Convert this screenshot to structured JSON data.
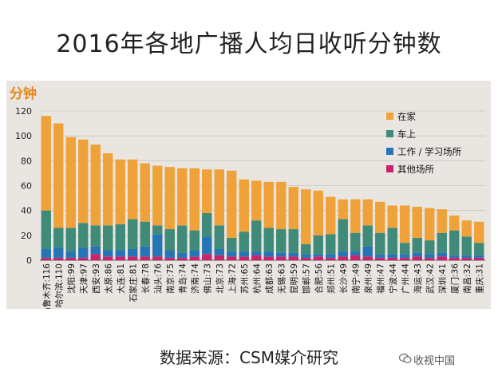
{
  "title": "2016年各地广播人均日收听分钟数",
  "source": "数据来源：CSM媒介研究",
  "watermark": "收视中国",
  "colors": {
    "at_home": "#f0a23a",
    "in_car": "#3f8a78",
    "work_study": "#2574b6",
    "other": "#c8236c",
    "unit": "#e8891f"
  },
  "chart_data": {
    "type": "bar",
    "stacked": true,
    "ylabel": "分钟",
    "ylim": [
      0,
      120
    ],
    "yticks": [
      0,
      20,
      40,
      60,
      80,
      100,
      120
    ],
    "categories": [
      "乌鲁木齐:116",
      "哈尔滨:110",
      "沈阳:99",
      "天津:97",
      "西安:93",
      "太原:86",
      "大连:81",
      "石家庄:81",
      "长春:78",
      "汕头:76",
      "南京:75",
      "青岛:74",
      "济南:74",
      "佛山:73",
      "北京:73",
      "上海:72",
      "苏州:65",
      "杭州:64",
      "成都:63",
      "无锡:63",
      "昆明:59",
      "邯郸:57",
      "合肥:56",
      "郑州:51",
      "长沙:49",
      "南宁:49",
      "泉州:49",
      "福州:47",
      "宁波:44",
      "广州:44",
      "海运:43",
      "武汉:42",
      "深圳:41",
      "厦门:36",
      "南昌:32",
      "重庆:31"
    ],
    "totals": [
      116,
      110,
      99,
      97,
      93,
      86,
      81,
      81,
      78,
      76,
      75,
      74,
      74,
      73,
      73,
      72,
      65,
      64,
      63,
      63,
      59,
      57,
      56,
      51,
      49,
      49,
      49,
      47,
      44,
      44,
      43,
      42,
      41,
      36,
      32,
      31
    ],
    "series": [
      {
        "name": "其他场所",
        "values": [
          2,
          2,
          2,
          2,
          5,
          3,
          3,
          3,
          3,
          3,
          2,
          2,
          3,
          5,
          4,
          3,
          3,
          4,
          3,
          3,
          3,
          2,
          3,
          2,
          3,
          4,
          3,
          2,
          2,
          2,
          3,
          2,
          3,
          2,
          2,
          2
        ]
      },
      {
        "name": "工作 / 学习场所",
        "values": [
          7,
          8,
          5,
          8,
          6,
          5,
          5,
          6,
          8,
          18,
          6,
          4,
          5,
          14,
          5,
          4,
          4,
          3,
          4,
          3,
          3,
          3,
          2,
          3,
          4,
          3,
          8,
          3,
          3,
          3,
          3,
          3,
          3,
          2,
          2,
          2
        ]
      },
      {
        "name": "车上",
        "values": [
          31,
          16,
          19,
          20,
          17,
          20,
          21,
          24,
          20,
          7,
          17,
          22,
          16,
          19,
          19,
          11,
          16,
          25,
          19,
          19,
          19,
          8,
          15,
          16,
          26,
          15,
          17,
          17,
          21,
          9,
          12,
          11,
          16,
          20,
          15,
          10
        ]
      },
      {
        "name": "在家",
        "values": [
          76,
          84,
          73,
          67,
          65,
          58,
          52,
          48,
          47,
          48,
          50,
          46,
          50,
          35,
          45,
          54,
          42,
          32,
          37,
          38,
          34,
          44,
          36,
          30,
          16,
          27,
          21,
          25,
          18,
          30,
          25,
          26,
          19,
          12,
          13,
          17
        ]
      }
    ],
    "legend": [
      "在家",
      "车上",
      "工作 / 学习场所",
      "其他场所"
    ]
  }
}
